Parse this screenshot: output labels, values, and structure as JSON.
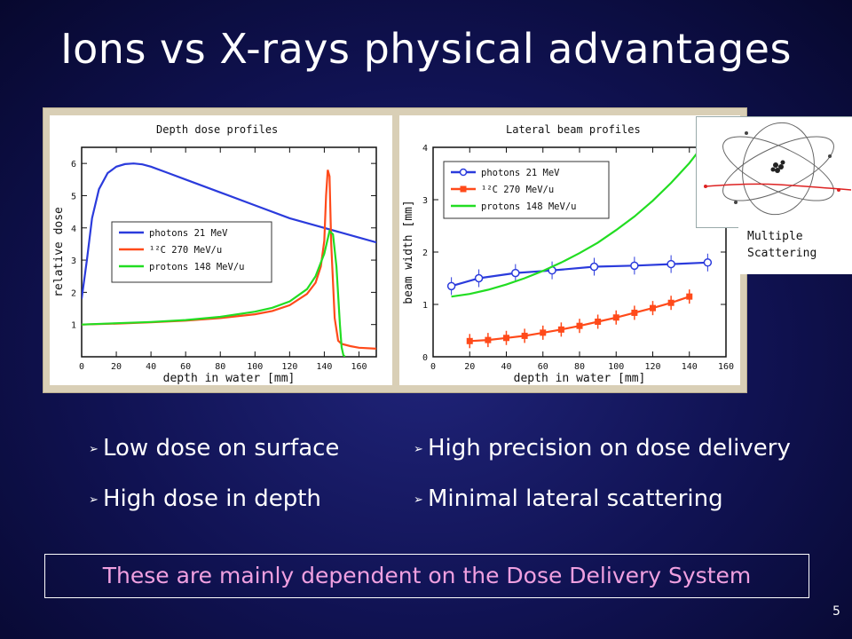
{
  "slide": {
    "title": "Ions vs X-rays physical advantages",
    "page_number": "5",
    "bullets_left": [
      "Low dose on surface",
      "High dose in depth"
    ],
    "bullets_right": [
      "High precision on dose delivery",
      "Minimal lateral scattering"
    ],
    "bullet_marker": "➢",
    "footer": "These are mainly dependent on the Dose Delivery System",
    "inset_label": "Multiple\nScattering",
    "colors": {
      "background": "#101252",
      "title": "#ffffff",
      "footer_text": "#f0a0e0"
    }
  },
  "chart_data": [
    {
      "type": "line",
      "title": "Depth dose profiles",
      "xlabel": "depth in water [mm]",
      "ylabel": "relative dose",
      "xlim": [
        0,
        170
      ],
      "ylim": [
        0,
        6.5
      ],
      "xticks": [
        0,
        20,
        40,
        60,
        80,
        100,
        120,
        140,
        160
      ],
      "yticks": [
        1,
        2,
        3,
        4,
        5,
        6
      ],
      "legend": "center",
      "series": [
        {
          "name": "photons 21 MeV",
          "color": "#2b3bdc",
          "x": [
            0,
            3,
            6,
            10,
            15,
            20,
            25,
            30,
            35,
            40,
            50,
            60,
            80,
            100,
            120,
            140,
            160,
            170
          ],
          "y": [
            1.8,
            3.0,
            4.3,
            5.2,
            5.7,
            5.9,
            5.98,
            6.0,
            5.97,
            5.9,
            5.7,
            5.5,
            5.1,
            4.7,
            4.3,
            4.0,
            3.7,
            3.55
          ]
        },
        {
          "name": "¹²C 270 MeV/u",
          "color": "#ff4a1a",
          "x": [
            0,
            20,
            40,
            60,
            80,
            100,
            110,
            120,
            130,
            135,
            138,
            140,
            141,
            142,
            143,
            144,
            146,
            148,
            150,
            155,
            160,
            170
          ],
          "y": [
            1.0,
            1.03,
            1.07,
            1.12,
            1.2,
            1.32,
            1.42,
            1.6,
            1.95,
            2.3,
            2.8,
            3.6,
            5.0,
            5.8,
            5.6,
            3.5,
            1.2,
            0.5,
            0.4,
            0.33,
            0.28,
            0.25
          ]
        },
        {
          "name": "protons 148 MeV/u",
          "color": "#22dd22",
          "x": [
            0,
            20,
            40,
            60,
            80,
            100,
            110,
            120,
            130,
            135,
            140,
            143,
            145,
            147,
            149,
            150,
            151,
            152
          ],
          "y": [
            1.0,
            1.04,
            1.08,
            1.14,
            1.24,
            1.4,
            1.52,
            1.72,
            2.1,
            2.5,
            3.2,
            3.9,
            3.8,
            2.8,
            1.0,
            0.3,
            0.05,
            0.0
          ]
        }
      ]
    },
    {
      "type": "line",
      "title": "Lateral beam profiles",
      "xlabel": "depth in water [mm]",
      "ylabel": "beam width [mm]",
      "xlim": [
        0,
        160
      ],
      "ylim": [
        0,
        4
      ],
      "xticks": [
        0,
        20,
        40,
        60,
        80,
        100,
        120,
        140,
        160
      ],
      "xticklabels": [
        "0",
        "20",
        "40",
        "60",
        "80",
        "100",
        "120",
        "140",
        "160"
      ],
      "yticks": [
        0,
        1,
        2,
        3,
        4
      ],
      "legend": "top-left",
      "series": [
        {
          "name": "photons 21 MeV",
          "color": "#2b3bdc",
          "marker": "open-circle",
          "x": [
            10,
            25,
            45,
            65,
            88,
            110,
            130,
            150
          ],
          "y": [
            1.35,
            1.5,
            1.6,
            1.65,
            1.72,
            1.74,
            1.77,
            1.8
          ]
        },
        {
          "name": "¹²C 270 MeV/u",
          "color": "#ff4a1a",
          "marker": "filled-square",
          "x": [
            20,
            30,
            40,
            50,
            60,
            70,
            80,
            90,
            100,
            110,
            120,
            130,
            140
          ],
          "y": [
            0.3,
            0.32,
            0.36,
            0.4,
            0.46,
            0.52,
            0.59,
            0.67,
            0.75,
            0.84,
            0.93,
            1.03,
            1.15
          ]
        },
        {
          "name": "protons 148 MeV/u",
          "color": "#22dd22",
          "x": [
            10,
            20,
            30,
            40,
            50,
            60,
            70,
            80,
            90,
            100,
            110,
            120,
            130,
            140,
            150
          ],
          "y": [
            1.15,
            1.2,
            1.28,
            1.38,
            1.5,
            1.64,
            1.8,
            1.98,
            2.18,
            2.42,
            2.68,
            2.98,
            3.32,
            3.7,
            4.15
          ]
        }
      ]
    }
  ]
}
